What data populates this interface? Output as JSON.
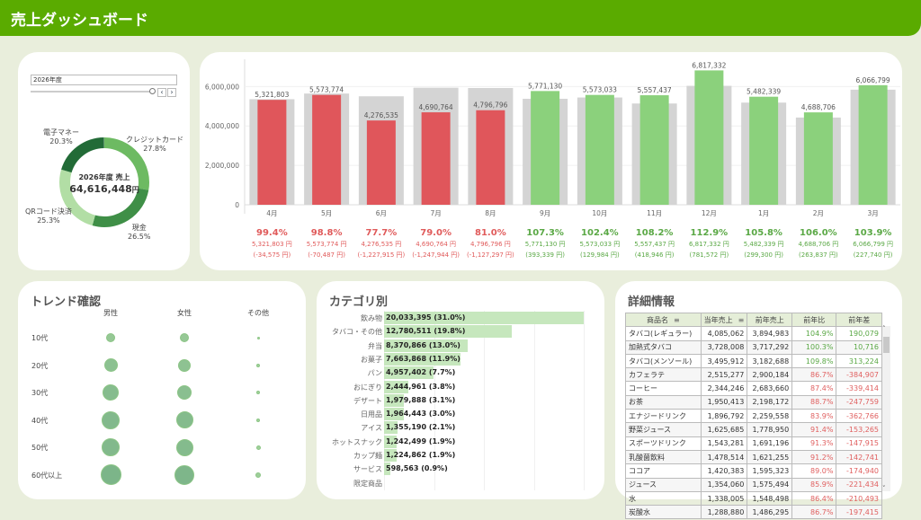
{
  "header": {
    "title": "売上ダッシュボード"
  },
  "filter": {
    "year": "2026年度"
  },
  "donut": {
    "center_label": "2026年度 売上",
    "center_value": "64,616,448",
    "unit": "円",
    "slices": [
      {
        "name": "クレジットカード",
        "pct": "27.8%",
        "value": 27.8,
        "color": "#6dba62"
      },
      {
        "name": "現金",
        "pct": "26.5%",
        "value": 26.5,
        "color": "#3f8f47"
      },
      {
        "name": "QRコード決済",
        "pct": "25.3%",
        "value": 25.3,
        "color": "#b2dea5"
      },
      {
        "name": "電子マネー",
        "pct": "20.3%",
        "value": 20.3,
        "color": "#226b37"
      }
    ]
  },
  "chart_data": {
    "type": "bar",
    "ylim": [
      0,
      7200000
    ],
    "yticks": [
      "0",
      "2,000,000",
      "4,000,000",
      "6,000,000"
    ],
    "ytick_values": [
      0,
      2000000,
      4000000,
      6000000
    ],
    "months": [
      "4月",
      "5月",
      "6月",
      "7月",
      "8月",
      "9月",
      "10月",
      "11月",
      "12月",
      "1月",
      "2月",
      "3月"
    ],
    "current": [
      5321803,
      5573774,
      4276535,
      4690764,
      4796796,
      5771130,
      5573033,
      5557437,
      6817332,
      5482339,
      4688706,
      6066799
    ],
    "previous": [
      5356378,
      5644261,
      5504450,
      5938708,
      5924093,
      5377791,
      5443049,
      5138491,
      6035760,
      5183039,
      4424869,
      5839059
    ],
    "value_labels": [
      "5,321,803",
      "5,573,774",
      "4,276,535",
      "4,690,764",
      "4,796,796",
      "5,771,130",
      "5,573,033",
      "5,557,437",
      "6,817,332",
      "5,482,339",
      "4,688,706",
      "6,066,799"
    ],
    "ratio": [
      "99.4%",
      "98.8%",
      "77.7%",
      "79.0%",
      "81.0%",
      "107.3%",
      "102.4%",
      "108.2%",
      "112.9%",
      "105.8%",
      "106.0%",
      "103.9%"
    ],
    "amount": [
      "5,321,803 円",
      "5,573,774 円",
      "4,276,535 円",
      "4,690,764 円",
      "4,796,796 円",
      "5,771,130 円",
      "5,573,033 円",
      "5,557,437 円",
      "6,817,332 円",
      "5,482,339 円",
      "4,688,706 円",
      "6,066,799 円"
    ],
    "diff": [
      "(-34,575 円)",
      "(-70,487 円)",
      "(-1,227,915 円)",
      "(-1,247,944 円)",
      "(-1,127,297 円)",
      "(393,339 円)",
      "(129,984 円)",
      "(418,946 円)",
      "(781,572 円)",
      "(299,300 円)",
      "(263,837 円)",
      "(227,740 円)"
    ],
    "colors": {
      "up": "#8bd17c",
      "down": "#e0565b",
      "prev": "#d4d4d4",
      "up_text": "#5aa845",
      "down_text": "#e05a5a"
    }
  },
  "trend": {
    "title": "トレンド確認",
    "columns": [
      "男性",
      "女性",
      "その他"
    ],
    "rows": [
      "10代",
      "20代",
      "30代",
      "40代",
      "50代",
      "60代以上"
    ],
    "sizes": [
      [
        5,
        5,
        1.5
      ],
      [
        7.5,
        7,
        2
      ],
      [
        9,
        8,
        2
      ],
      [
        10,
        9.5,
        2
      ],
      [
        10,
        9.5,
        2.5
      ],
      [
        11.5,
        11,
        3
      ]
    ]
  },
  "category": {
    "title": "カテゴリ別",
    "items": [
      {
        "name": "飲み物",
        "value": 20033395,
        "label": "20,033,395 (31.0%)"
      },
      {
        "name": "タバコ・その他",
        "value": 12780511,
        "label": "12,780,511 (19.8%)"
      },
      {
        "name": "弁当",
        "value": 8370866,
        "label": "8,370,866 (13.0%)"
      },
      {
        "name": "お菓子",
        "value": 7663868,
        "label": "7,663,868 (11.9%)"
      },
      {
        "name": "パン",
        "value": 4957402,
        "label": "4,957,402 (7.7%)"
      },
      {
        "name": "おにぎり",
        "value": 2444961,
        "label": "2,444,961 (3.8%)"
      },
      {
        "name": "デザート",
        "value": 1979888,
        "label": "1,979,888 (3.1%)"
      },
      {
        "name": "日用品",
        "value": 1964443,
        "label": "1,964,443 (3.0%)"
      },
      {
        "name": "アイス",
        "value": 1355190,
        "label": "1,355,190 (2.1%)"
      },
      {
        "name": "ホットスナック",
        "value": 1242499,
        "label": "1,242,499 (1.9%)"
      },
      {
        "name": "カップ麺",
        "value": 1224862,
        "label": "1,224,862 (1.9%)"
      },
      {
        "name": "サービス",
        "value": 598563,
        "label": "598,563 (0.9%)"
      },
      {
        "name": "限定商品",
        "value": 0,
        "label": ""
      }
    ]
  },
  "detail": {
    "title": "詳細情報",
    "headers": [
      "商品名",
      "当年売上",
      "前年売上",
      "前年比",
      "前年差"
    ],
    "rows": [
      [
        "タバコ(レギュラー)",
        "4,085,062",
        "3,894,983",
        "104.9%",
        "190,079"
      ],
      [
        "加熱式タバコ",
        "3,728,008",
        "3,717,292",
        "100.3%",
        "10,716"
      ],
      [
        "タバコ(メンソール)",
        "3,495,912",
        "3,182,688",
        "109.8%",
        "313,224"
      ],
      [
        "カフェラテ",
        "2,515,277",
        "2,900,184",
        "86.7%",
        "-384,907"
      ],
      [
        "コーヒー",
        "2,344,246",
        "2,683,660",
        "87.4%",
        "-339,414"
      ],
      [
        "お茶",
        "1,950,413",
        "2,198,172",
        "88.7%",
        "-247,759"
      ],
      [
        "エナジードリンク",
        "1,896,792",
        "2,259,558",
        "83.9%",
        "-362,766"
      ],
      [
        "野菜ジュース",
        "1,625,685",
        "1,778,950",
        "91.4%",
        "-153,265"
      ],
      [
        "スポーツドリンク",
        "1,543,281",
        "1,691,196",
        "91.3%",
        "-147,915"
      ],
      [
        "乳酸菌飲料",
        "1,478,514",
        "1,621,255",
        "91.2%",
        "-142,741"
      ],
      [
        "ココア",
        "1,420,383",
        "1,595,323",
        "89.0%",
        "-174,940"
      ],
      [
        "ジュース",
        "1,354,060",
        "1,575,494",
        "85.9%",
        "-221,434"
      ],
      [
        "水",
        "1,338,005",
        "1,548,498",
        "86.4%",
        "-210,493"
      ],
      [
        "炭酸水",
        "1,288,880",
        "1,486,295",
        "86.7%",
        "-197,415"
      ]
    ]
  }
}
